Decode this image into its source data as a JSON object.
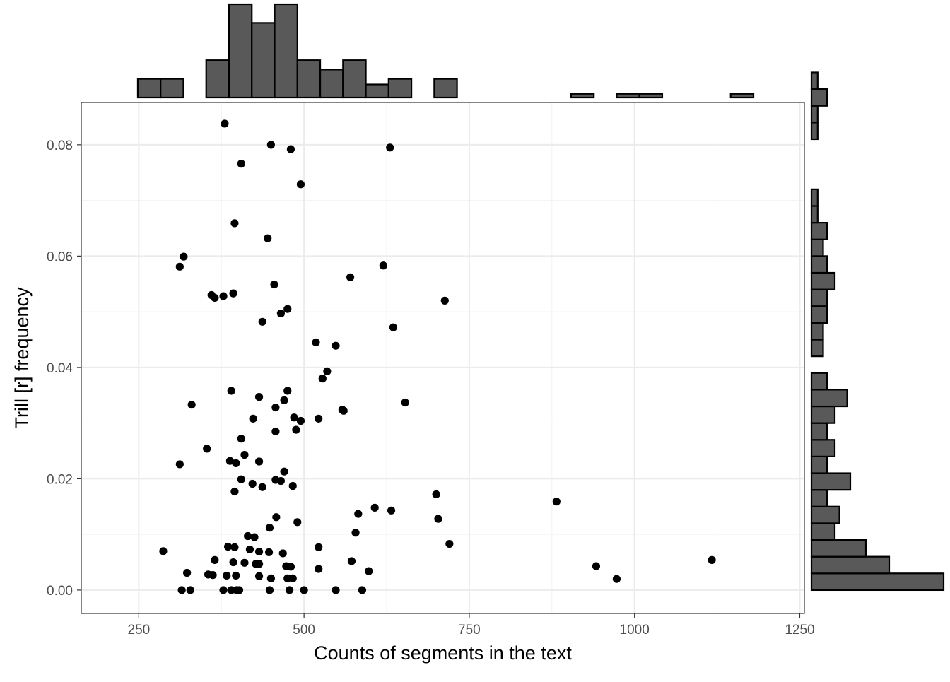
{
  "chart_data": {
    "type": "scatter",
    "title": "",
    "xlabel": "Counts of segments in the text",
    "ylabel": "Trill [r] frequency",
    "xlim": [
      163,
      1257
    ],
    "ylim": [
      -0.0042,
      0.0876
    ],
    "x_ticks": [
      250,
      500,
      750,
      1000,
      1250
    ],
    "x_tick_labels": [
      "250",
      "500",
      "750",
      "1000",
      "1250"
    ],
    "y_ticks": [
      0.0,
      0.02,
      0.04,
      0.06,
      0.08
    ],
    "y_tick_labels": [
      "0.00",
      "0.02",
      "0.04",
      "0.06",
      "0.08"
    ],
    "grid": true,
    "point_color": "#000000",
    "bar_fill": "#595959",
    "bar_stroke": "#000000",
    "points": [
      [
        380,
        0.0838
      ],
      [
        450,
        0.08
      ],
      [
        480,
        0.0792
      ],
      [
        630,
        0.0795
      ],
      [
        405,
        0.0766
      ],
      [
        495,
        0.0729
      ],
      [
        395,
        0.0659
      ],
      [
        445,
        0.0632
      ],
      [
        318,
        0.0599
      ],
      [
        312,
        0.0581
      ],
      [
        620,
        0.0583
      ],
      [
        570,
        0.0562
      ],
      [
        455,
        0.0549
      ],
      [
        360,
        0.053
      ],
      [
        365,
        0.0525
      ],
      [
        378,
        0.0528
      ],
      [
        393,
        0.0533
      ],
      [
        713,
        0.052
      ],
      [
        475,
        0.0505
      ],
      [
        465,
        0.0497
      ],
      [
        437,
        0.0482
      ],
      [
        635,
        0.0472
      ],
      [
        518,
        0.0445
      ],
      [
        548,
        0.0439
      ],
      [
        535,
        0.0393
      ],
      [
        528,
        0.038
      ],
      [
        390,
        0.0358
      ],
      [
        475,
        0.0358
      ],
      [
        432,
        0.0347
      ],
      [
        470,
        0.0341
      ],
      [
        653,
        0.0337
      ],
      [
        330,
        0.0333
      ],
      [
        457,
        0.0328
      ],
      [
        560,
        0.0322
      ],
      [
        558,
        0.0324
      ],
      [
        485,
        0.031
      ],
      [
        423,
        0.0308
      ],
      [
        495,
        0.0304
      ],
      [
        522,
        0.0308
      ],
      [
        488,
        0.0288
      ],
      [
        457,
        0.0285
      ],
      [
        405,
        0.0272
      ],
      [
        353,
        0.0254
      ],
      [
        410,
        0.0243
      ],
      [
        388,
        0.0232
      ],
      [
        432,
        0.0231
      ],
      [
        397,
        0.0228
      ],
      [
        312,
        0.0226
      ],
      [
        470,
        0.0213
      ],
      [
        405,
        0.0199
      ],
      [
        457,
        0.0198
      ],
      [
        465,
        0.0196
      ],
      [
        422,
        0.0191
      ],
      [
        437,
        0.0185
      ],
      [
        483,
        0.0187
      ],
      [
        395,
        0.0177
      ],
      [
        700,
        0.0172
      ],
      [
        882,
        0.0159
      ],
      [
        607,
        0.0148
      ],
      [
        632,
        0.0143
      ],
      [
        582,
        0.0137
      ],
      [
        458,
        0.0131
      ],
      [
        703,
        0.0128
      ],
      [
        490,
        0.0122
      ],
      [
        448,
        0.0112
      ],
      [
        578,
        0.0103
      ],
      [
        415,
        0.0097
      ],
      [
        425,
        0.0095
      ],
      [
        720,
        0.0083
      ],
      [
        385,
        0.0078
      ],
      [
        395,
        0.0077
      ],
      [
        418,
        0.0073
      ],
      [
        522,
        0.0077
      ],
      [
        287,
        0.007
      ],
      [
        432,
        0.0069
      ],
      [
        447,
        0.0068
      ],
      [
        468,
        0.0066
      ],
      [
        365,
        0.0054
      ],
      [
        393,
        0.005
      ],
      [
        410,
        0.0049
      ],
      [
        427,
        0.0047
      ],
      [
        432,
        0.0047
      ],
      [
        572,
        0.0052
      ],
      [
        1117,
        0.0054
      ],
      [
        473,
        0.0043
      ],
      [
        480,
        0.0042
      ],
      [
        942,
        0.0043
      ],
      [
        522,
        0.0038
      ],
      [
        598,
        0.0034
      ],
      [
        323,
        0.0031
      ],
      [
        355,
        0.0028
      ],
      [
        362,
        0.0027
      ],
      [
        383,
        0.0026
      ],
      [
        397,
        0.0026
      ],
      [
        432,
        0.0025
      ],
      [
        450,
        0.0021
      ],
      [
        475,
        0.0021
      ],
      [
        483,
        0.0021
      ],
      [
        973,
        0.002
      ],
      [
        315,
        0.0
      ],
      [
        328,
        0.0
      ],
      [
        378,
        0.0
      ],
      [
        390,
        0.0
      ],
      [
        398,
        0.0
      ],
      [
        402,
        0.0
      ],
      [
        448,
        0.0
      ],
      [
        478,
        0.0
      ],
      [
        500,
        0.0
      ],
      [
        548,
        0.0
      ],
      [
        588,
        0.0
      ]
    ],
    "x_histogram": {
      "bin_width": 34.5,
      "bin_start": 214,
      "counts": [
        0,
        1,
        1,
        0,
        2,
        5,
        4,
        5,
        2,
        1.5,
        2,
        0.7,
        1,
        0,
        1,
        0,
        0,
        0,
        0,
        0,
        0.2,
        0,
        0.2,
        0.2,
        0,
        0,
        0,
        0.2,
        0
      ]
    },
    "y_histogram": {
      "bin_width": 0.003,
      "bin_start": 0.0,
      "counts": [
        8.5,
        5,
        3.5,
        1.5,
        1.8,
        1,
        2.5,
        1,
        1.5,
        1,
        1.5,
        2.3,
        1,
        0,
        0.75,
        0.75,
        1,
        1,
        1.5,
        1,
        0.75,
        1,
        0.4,
        0.4,
        0,
        0,
        0,
        0.4,
        0.4,
        1,
        0.4
      ]
    }
  }
}
